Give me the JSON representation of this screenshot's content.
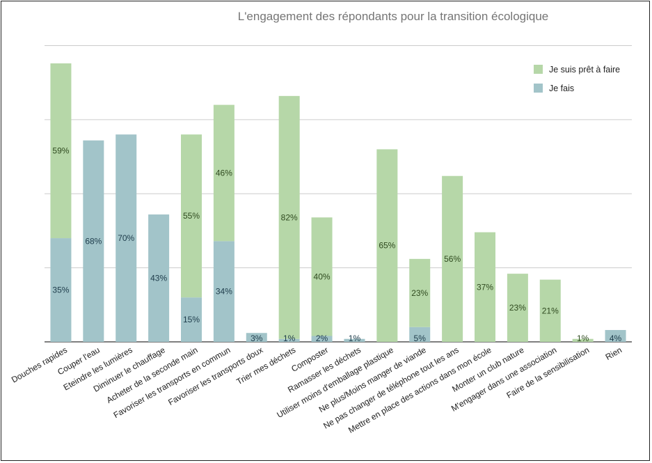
{
  "chart_data": {
    "type": "bar",
    "stacked": true,
    "title": "L'engagement des répondants pour la transition écologique",
    "xlabel": "",
    "ylabel": "",
    "ylim": [
      0,
      95
    ],
    "grid": true,
    "legend_position": "top-right",
    "categories": [
      "Douches rapides",
      "Couper l'eau",
      "Eteindre les lumières",
      "Diminuer le chauffage",
      "Acheter de la seconde main",
      "Favoriser les transports en commun",
      "Favoriser les transports doux",
      "Trier mes déchets",
      "Composter",
      "Ramasser les déchets",
      "Utiliser moins d'emballage plastique",
      "Ne plus/Moins manger de viande",
      "Ne pas changer de téléphone tout les ans",
      "Mettre en place des actions dans mon école",
      "Monter un club nature",
      "M'engager dans une association",
      "Faire de la sensibilisation",
      "Rien"
    ],
    "series": [
      {
        "name": "Je fais",
        "color": "#a2c4c9",
        "values": [
          35,
          68,
          70,
          43,
          15,
          34,
          3,
          1,
          2,
          1,
          0,
          5,
          0,
          0,
          0,
          0,
          0,
          4
        ],
        "labels": [
          "35%",
          "68%",
          "70%",
          "43%",
          "15%",
          "34%",
          "3%",
          "1%",
          "2%",
          "1%",
          "",
          "5%",
          "",
          "",
          "",
          "",
          "",
          "4%"
        ]
      },
      {
        "name": "Je suis prêt à faire",
        "color": "#b6d7a8",
        "values": [
          59,
          0,
          0,
          0,
          55,
          46,
          0,
          82,
          40,
          0,
          65,
          23,
          56,
          37,
          23,
          21,
          1,
          0
        ],
        "labels": [
          "59%",
          "",
          "",
          "",
          "55%",
          "46%",
          "",
          "82%",
          "40%",
          "",
          "65%",
          "23%",
          "56%",
          "37%",
          "23%",
          "21%",
          "1%",
          ""
        ]
      }
    ]
  }
}
